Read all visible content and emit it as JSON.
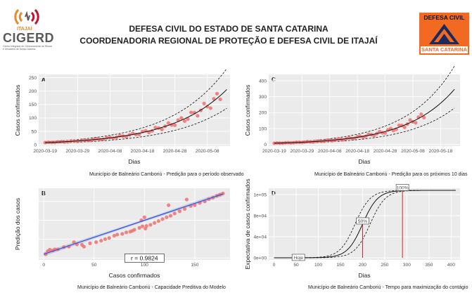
{
  "header": {
    "title_line1": "DEFESA CIVIL DO ESTADO DE SANTA CATARINA",
    "title_line2": "COORDENADORIA REGIONAL DE PROTEÇÃO E DEFESA CIVIL DE ITAJAÍ",
    "left_logo": {
      "tag": "ITAJAÍ",
      "word": "CIGERD",
      "subtitle": "Centro Integrado de Gerenciamento de Riscos e Desastres de Santa Catarina",
      "icon": "cigerd-logo-icon",
      "colors": [
        "#e8892d",
        "#c8102e",
        "#5a5a5a"
      ]
    },
    "right_logo": {
      "top_text": "DEFESA CIVIL",
      "bottom_text": "SANTA CATARINA",
      "icon": "defesa-civil-triangle-icon",
      "color": "#f26a21"
    }
  },
  "chart_data": [
    {
      "panel": "A",
      "type": "scatter",
      "xlabel": "Dias",
      "ylabel": "Casos confirmados",
      "caption": "Município de Balneário Camboriú - Predição para o período observado",
      "x_ticks": [
        "2020-03-19",
        "2020-03-29",
        "2020-04-08",
        "2020-04-18",
        "2020-04-28",
        "2020-05-08"
      ],
      "y_ticks": [
        0,
        50,
        100,
        150,
        200,
        250
      ],
      "xlim": [
        -2,
        57
      ],
      "ylim": [
        -5,
        262
      ],
      "growth": {
        "a": 8.0,
        "b": 0.058
      },
      "band": {
        "lower_factor": 0.66,
        "upper_factor": 1.38
      },
      "n_points": 55,
      "point_color": "#f07070",
      "fit_color": "#111111",
      "grid": true
    },
    {
      "panel": "C",
      "type": "scatter",
      "xlabel": "Dias",
      "ylabel": "Casos confirmados",
      "caption": "Município de Balneário Camboriú - Predição para os próximos 10 dias",
      "x_ticks": [
        "2020-03-19",
        "2020-03-29",
        "2020-04-08",
        "2020-04-18",
        "2020-04-28",
        "2020-05-08",
        "2020-05-18"
      ],
      "y_ticks": [
        0,
        100,
        200,
        300,
        400
      ],
      "xlim": [
        -2,
        67
      ],
      "ylim": [
        -10,
        440
      ],
      "growth": {
        "a": 8.0,
        "b": 0.058
      },
      "band": {
        "lower_factor": 0.66,
        "upper_factor": 1.42
      },
      "n_points": 55,
      "prediction_days": 65,
      "point_color": "#f07070",
      "fit_color": "#111111",
      "grid": true
    },
    {
      "panel": "B",
      "type": "scatter",
      "xlabel": "Casos confirmados",
      "ylabel": "Predição dos casos",
      "caption": "Município de Balneário Camboriú - Capacidade Preditiva do Modelo",
      "x_ticks": [
        0,
        50,
        100,
        150
      ],
      "xlim": [
        -5,
        185
      ],
      "ylim": [
        -5,
        185
      ],
      "r_label": "r = 0.9824",
      "points": [
        [
          2,
          10
        ],
        [
          4,
          18
        ],
        [
          6,
          22
        ],
        [
          9,
          20
        ],
        [
          11,
          23
        ],
        [
          14,
          23
        ],
        [
          20,
          29
        ],
        [
          25,
          30
        ],
        [
          33,
          36
        ],
        [
          38,
          35
        ],
        [
          46,
          39
        ],
        [
          52,
          42
        ],
        [
          57,
          46
        ],
        [
          61,
          50
        ],
        [
          65,
          53
        ],
        [
          70,
          59
        ],
        [
          73,
          62
        ],
        [
          78,
          64
        ],
        [
          82,
          68
        ],
        [
          86,
          70
        ],
        [
          90,
          75
        ],
        [
          95,
          80
        ],
        [
          98,
          84
        ],
        [
          102,
          85
        ],
        [
          106,
          88
        ],
        [
          110,
          93
        ],
        [
          114,
          98
        ],
        [
          118,
          103
        ],
        [
          122,
          108
        ],
        [
          126,
          112
        ],
        [
          130,
          118
        ],
        [
          135,
          124
        ],
        [
          140,
          130
        ],
        [
          146,
          138
        ],
        [
          150,
          140
        ],
        [
          155,
          146
        ],
        [
          160,
          150
        ],
        [
          164,
          156
        ],
        [
          168,
          160
        ],
        [
          172,
          165
        ],
        [
          175,
          168
        ],
        [
          178,
          171
        ],
        [
          97,
          100
        ],
        [
          100,
          108
        ],
        [
          101,
          78
        ],
        [
          124,
          140
        ],
        [
          88,
          72
        ],
        [
          142,
          155
        ],
        [
          40,
          30
        ],
        [
          30,
          42
        ]
      ],
      "regression": [
        [
          0,
          10
        ],
        [
          178,
          170
        ]
      ],
      "point_color": "#f07070",
      "line_color": "#3355dd",
      "band_color": "#aab4d8",
      "grid": true
    },
    {
      "panel": "D",
      "type": "line",
      "xlabel": "Dias",
      "ylabel": "Expectativa de casos confirmados",
      "caption": "Município de Balneário Camboriú - Tempo para maximização do contágio",
      "x_ticks": [
        0,
        50,
        100,
        150,
        200,
        250,
        300,
        350,
        400
      ],
      "y_ticks": [
        "0e+00",
        "4e+04",
        "8e+04",
        "1e+05"
      ],
      "y_tick_values": [
        0,
        40000,
        80000,
        120000
      ],
      "xlim": [
        -12,
        420
      ],
      "ylim": [
        -4000,
        132000
      ],
      "logistic": {
        "K": 128000,
        "mid": 200,
        "k": 0.058,
        "mid_lower": 183,
        "mid_upper": 217
      },
      "annotations": [
        {
          "label": "Hoje",
          "x": 55
        },
        {
          "label": "50%",
          "x": 200
        },
        {
          "label": "100%",
          "x": 290
        }
      ],
      "vline_color": "#e02020",
      "line_color": "#111111",
      "grid": true
    }
  ]
}
